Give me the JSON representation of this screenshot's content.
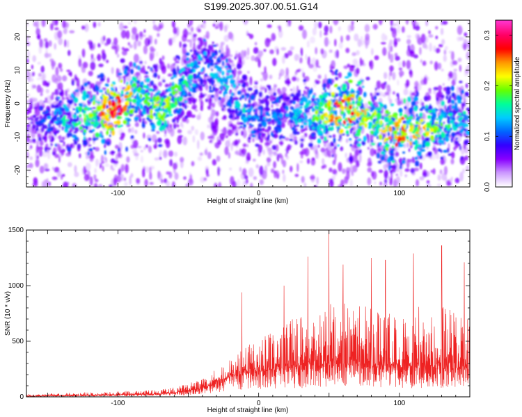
{
  "title": "S199.2025.307.00.51.G14",
  "chart_data": [
    {
      "type": "heatmap",
      "xlabel": "Height of straight line (km)",
      "ylabel": "Frequency (Hz)",
      "xlim": [
        -165,
        150
      ],
      "ylim": [
        -25,
        25
      ],
      "x_ticks": [
        -100,
        0,
        100
      ],
      "x_tick_labels": [
        "-100",
        "0",
        "100"
      ],
      "y_ticks": [
        -20,
        -10,
        0,
        10,
        20
      ],
      "y_tick_labels": [
        "-20",
        "-10",
        "0",
        "10",
        "20"
      ],
      "colorbar": {
        "label": "Normalized spectral amplitude",
        "range": [
          0.0,
          0.33
        ],
        "ticks": [
          0.0,
          0.1,
          0.2,
          0.3
        ],
        "tick_labels": [
          "0.0",
          "0.1",
          "0.2",
          "0.3"
        ],
        "colormap": [
          "#ffffff",
          "#cc99ff",
          "#8800ff",
          "#3300ff",
          "#0066ff",
          "#00ccff",
          "#00ff99",
          "#66ff00",
          "#ffff00",
          "#ff9900",
          "#ff0000",
          "#ff0066",
          "#ff33cc"
        ]
      },
      "ridge": {
        "x": [
          -165,
          -140,
          -120,
          -100,
          -85,
          -70,
          -50,
          -40,
          -25,
          -10,
          0,
          20,
          40,
          60,
          80,
          90,
          100,
          110,
          125,
          140,
          150
        ],
        "center_freq": [
          -6,
          -5,
          -4,
          -2,
          3,
          -2,
          7,
          12,
          8,
          -2,
          -5,
          -3,
          -3,
          -2,
          -4,
          -8,
          -9,
          -8,
          -7,
          -4,
          -5
        ],
        "peak_amplitude": [
          0.06,
          0.15,
          0.2,
          0.3,
          0.18,
          0.22,
          0.16,
          0.14,
          0.15,
          0.14,
          0.12,
          0.12,
          0.18,
          0.3,
          0.2,
          0.22,
          0.3,
          0.25,
          0.2,
          0.16,
          0.15
        ]
      }
    },
    {
      "type": "line",
      "xlabel": "Height of straight line (km)",
      "ylabel": "SNR (10 * v/v)",
      "xlim": [
        -165,
        150
      ],
      "ylim": [
        0,
        1500
      ],
      "x_ticks": [
        -100,
        0,
        100
      ],
      "x_tick_labels": [
        "-100",
        "0",
        "100"
      ],
      "y_ticks": [
        0,
        500,
        1000,
        1500
      ],
      "y_tick_labels": [
        "0",
        "500",
        "1000",
        "1500"
      ],
      "color": "#ee2222",
      "envelope": {
        "x": [
          -165,
          -140,
          -110,
          -80,
          -60,
          -45,
          -35,
          -25,
          -15,
          -5,
          5,
          15,
          30,
          50,
          70,
          90,
          110,
          130,
          150
        ],
        "base": [
          5,
          10,
          15,
          20,
          35,
          60,
          100,
          150,
          200,
          220,
          230,
          240,
          260,
          280,
          280,
          270,
          260,
          260,
          250
        ],
        "typical_peak": [
          25,
          35,
          45,
          60,
          90,
          140,
          200,
          300,
          400,
          500,
          550,
          650,
          750,
          850,
          850,
          800,
          800,
          850,
          750
        ]
      },
      "notable_peaks": [
        {
          "x": -12,
          "y": 940
        },
        {
          "x": 18,
          "y": 1000
        },
        {
          "x": 35,
          "y": 1260
        },
        {
          "x": 50,
          "y": 1500
        },
        {
          "x": 60,
          "y": 1190
        },
        {
          "x": 80,
          "y": 1250
        },
        {
          "x": 90,
          "y": 1230
        },
        {
          "x": 110,
          "y": 1290
        },
        {
          "x": 130,
          "y": 1360
        },
        {
          "x": 146,
          "y": 1210
        }
      ]
    }
  ]
}
